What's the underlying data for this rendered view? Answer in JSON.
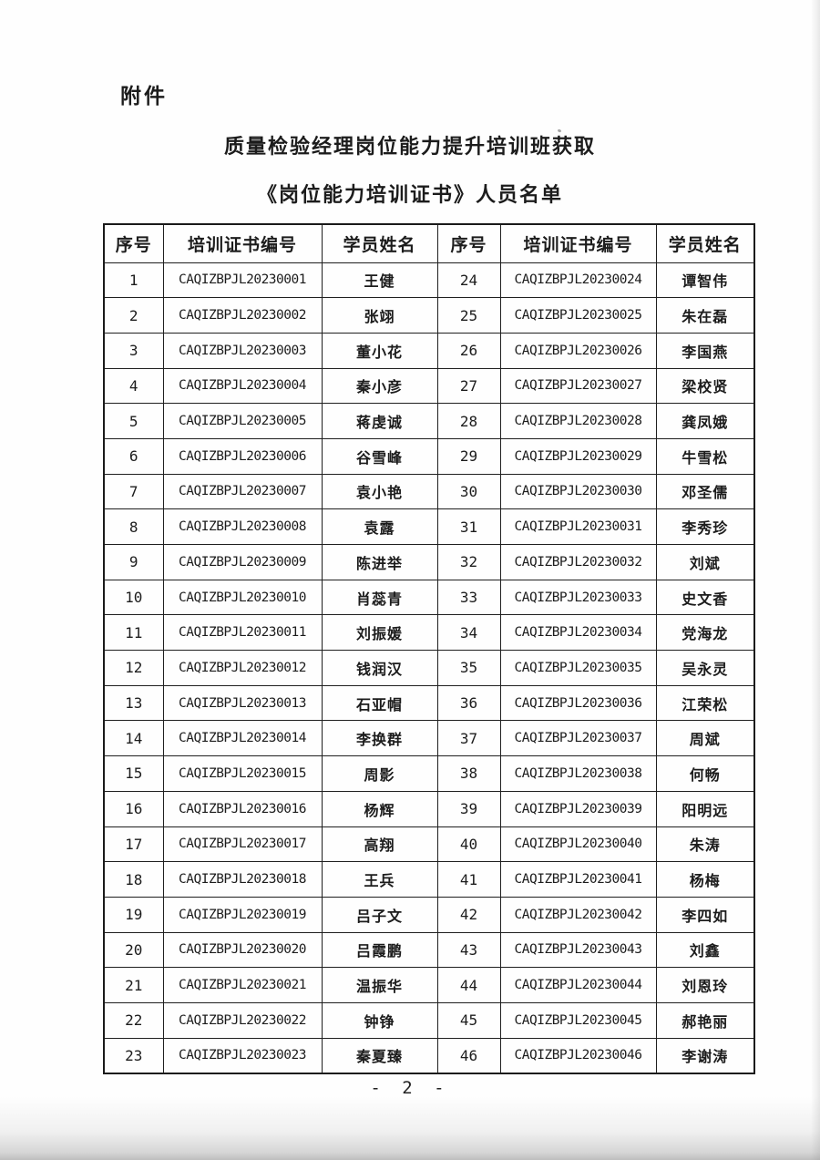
{
  "page": {
    "attachment_label": "附件",
    "title_line1": "质量检验经理岗位能力提升培训班获取",
    "title_line2": "《岗位能力培训证书》人员名单",
    "page_number": "- 2 -"
  },
  "table": {
    "headers": [
      "序号",
      "培训证书编号",
      "学员姓名",
      "序号",
      "培训证书编号",
      "学员姓名"
    ],
    "rows": [
      {
        "no_left": "1",
        "cert_left": "CAQIZBPJL20230001",
        "name_left": "王健",
        "no_right": "24",
        "cert_right": "CAQIZBPJL20230024",
        "name_right": "谭智伟"
      },
      {
        "no_left": "2",
        "cert_left": "CAQIZBPJL20230002",
        "name_left": "张翊",
        "no_right": "25",
        "cert_right": "CAQIZBPJL20230025",
        "name_right": "朱在磊"
      },
      {
        "no_left": "3",
        "cert_left": "CAQIZBPJL20230003",
        "name_left": "董小花",
        "no_right": "26",
        "cert_right": "CAQIZBPJL20230026",
        "name_right": "李国燕"
      },
      {
        "no_left": "4",
        "cert_left": "CAQIZBPJL20230004",
        "name_left": "秦小彦",
        "no_right": "27",
        "cert_right": "CAQIZBPJL20230027",
        "name_right": "梁校贤"
      },
      {
        "no_left": "5",
        "cert_left": "CAQIZBPJL20230005",
        "name_left": "蒋虔诚",
        "no_right": "28",
        "cert_right": "CAQIZBPJL20230028",
        "name_right": "龚凤娥"
      },
      {
        "no_left": "6",
        "cert_left": "CAQIZBPJL20230006",
        "name_left": "谷雪峰",
        "no_right": "29",
        "cert_right": "CAQIZBPJL20230029",
        "name_right": "牛雪松"
      },
      {
        "no_left": "7",
        "cert_left": "CAQIZBPJL20230007",
        "name_left": "袁小艳",
        "no_right": "30",
        "cert_right": "CAQIZBPJL20230030",
        "name_right": "邓圣儒"
      },
      {
        "no_left": "8",
        "cert_left": "CAQIZBPJL20230008",
        "name_left": "袁露",
        "no_right": "31",
        "cert_right": "CAQIZBPJL20230031",
        "name_right": "李秀珍"
      },
      {
        "no_left": "9",
        "cert_left": "CAQIZBPJL20230009",
        "name_left": "陈进举",
        "no_right": "32",
        "cert_right": "CAQIZBPJL20230032",
        "name_right": "刘斌"
      },
      {
        "no_left": "10",
        "cert_left": "CAQIZBPJL20230010",
        "name_left": "肖蕊青",
        "no_right": "33",
        "cert_right": "CAQIZBPJL20230033",
        "name_right": "史文香"
      },
      {
        "no_left": "11",
        "cert_left": "CAQIZBPJL20230011",
        "name_left": "刘振媛",
        "no_right": "34",
        "cert_right": "CAQIZBPJL20230034",
        "name_right": "党海龙"
      },
      {
        "no_left": "12",
        "cert_left": "CAQIZBPJL20230012",
        "name_left": "钱润汉",
        "no_right": "35",
        "cert_right": "CAQIZBPJL20230035",
        "name_right": "吴永灵"
      },
      {
        "no_left": "13",
        "cert_left": "CAQIZBPJL20230013",
        "name_left": "石亚帽",
        "no_right": "36",
        "cert_right": "CAQIZBPJL20230036",
        "name_right": "江荣松"
      },
      {
        "no_left": "14",
        "cert_left": "CAQIZBPJL20230014",
        "name_left": "李换群",
        "no_right": "37",
        "cert_right": "CAQIZBPJL20230037",
        "name_right": "周斌"
      },
      {
        "no_left": "15",
        "cert_left": "CAQIZBPJL20230015",
        "name_left": "周影",
        "no_right": "38",
        "cert_right": "CAQIZBPJL20230038",
        "name_right": "何畅"
      },
      {
        "no_left": "16",
        "cert_left": "CAQIZBPJL20230016",
        "name_left": "杨辉",
        "no_right": "39",
        "cert_right": "CAQIZBPJL20230039",
        "name_right": "阳明远"
      },
      {
        "no_left": "17",
        "cert_left": "CAQIZBPJL20230017",
        "name_left": "高翔",
        "no_right": "40",
        "cert_right": "CAQIZBPJL20230040",
        "name_right": "朱涛"
      },
      {
        "no_left": "18",
        "cert_left": "CAQIZBPJL20230018",
        "name_left": "王兵",
        "no_right": "41",
        "cert_right": "CAQIZBPJL20230041",
        "name_right": "杨梅"
      },
      {
        "no_left": "19",
        "cert_left": "CAQIZBPJL20230019",
        "name_left": "吕子文",
        "no_right": "42",
        "cert_right": "CAQIZBPJL20230042",
        "name_right": "李四如"
      },
      {
        "no_left": "20",
        "cert_left": "CAQIZBPJL20230020",
        "name_left": "吕霞鹏",
        "no_right": "43",
        "cert_right": "CAQIZBPJL20230043",
        "name_right": "刘鑫"
      },
      {
        "no_left": "21",
        "cert_left": "CAQIZBPJL20230021",
        "name_left": "温振华",
        "no_right": "44",
        "cert_right": "CAQIZBPJL20230044",
        "name_right": "刘恩玲"
      },
      {
        "no_left": "22",
        "cert_left": "CAQIZBPJL20230022",
        "name_left": "钟铮",
        "no_right": "45",
        "cert_right": "CAQIZBPJL20230045",
        "name_right": "郝艳丽"
      },
      {
        "no_left": "23",
        "cert_left": "CAQIZBPJL20230023",
        "name_left": "秦夏臻",
        "no_right": "46",
        "cert_right": "CAQIZBPJL20230046",
        "name_right": "李谢涛"
      }
    ]
  }
}
